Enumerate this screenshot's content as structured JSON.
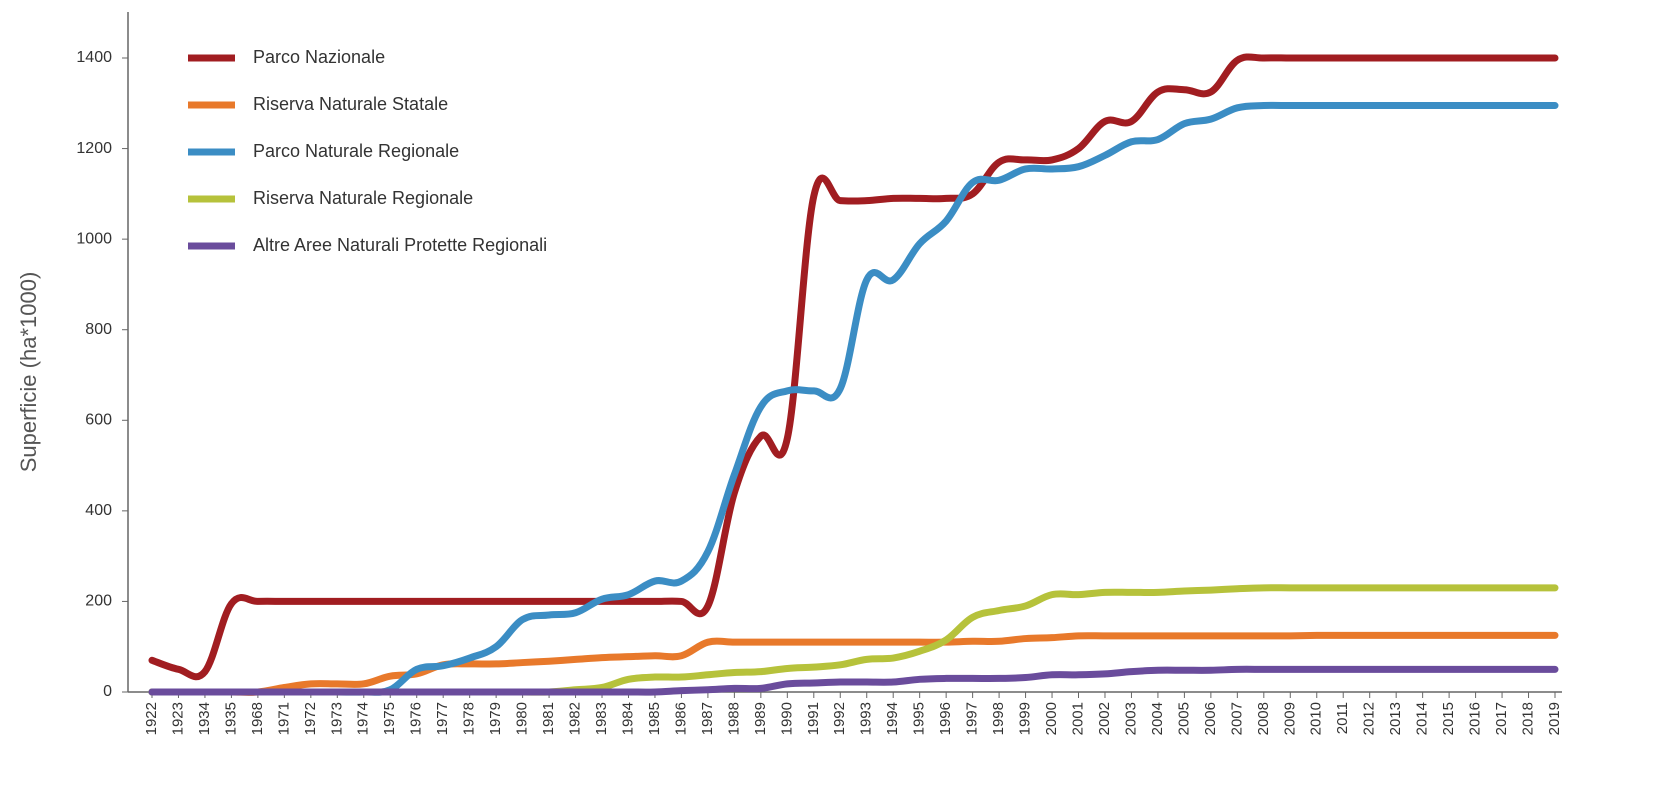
{
  "chart_data": {
    "type": "line",
    "y_label": "Superficie (ha*1000)",
    "categories": [
      "1922",
      "1923",
      "1934",
      "1935",
      "1968",
      "1971",
      "1972",
      "1973",
      "1974",
      "1975",
      "1976",
      "1977",
      "1978",
      "1979",
      "1980",
      "1981",
      "1982",
      "1983",
      "1984",
      "1985",
      "1986",
      "1987",
      "1988",
      "1989",
      "1990",
      "1991",
      "1992",
      "1993",
      "1994",
      "1995",
      "1996",
      "1997",
      "1998",
      "1999",
      "2000",
      "2001",
      "2002",
      "2003",
      "2004",
      "2005",
      "2006",
      "2007",
      "2008",
      "2009",
      "2010",
      "2011",
      "2012",
      "2013",
      "2014",
      "2015",
      "2016",
      "2017",
      "2018",
      "2019"
    ],
    "series": [
      {
        "name": "Parco Nazionale",
        "color": "#a11d21",
        "values": [
          70,
          50,
          45,
          195,
          200,
          200,
          200,
          200,
          200,
          200,
          200,
          200,
          200,
          200,
          200,
          200,
          200,
          200,
          200,
          200,
          200,
          190,
          440,
          565,
          560,
          1095,
          1085,
          1085,
          1090,
          1090,
          1090,
          1100,
          1170,
          1175,
          1175,
          1200,
          1260,
          1260,
          1325,
          1330,
          1325,
          1395,
          1400,
          1400,
          1400,
          1400,
          1400,
          1400,
          1400,
          1400,
          1400,
          1400,
          1400,
          1400
        ]
      },
      {
        "name": "Riserva Naturale Statale",
        "color": "#e8792b",
        "values": [
          0,
          0,
          0,
          0,
          0,
          10,
          18,
          18,
          18,
          35,
          40,
          60,
          62,
          62,
          65,
          68,
          72,
          76,
          78,
          80,
          80,
          110,
          110,
          110,
          110,
          110,
          110,
          110,
          110,
          110,
          110,
          112,
          112,
          118,
          120,
          124,
          124,
          124,
          124,
          124,
          124,
          124,
          124,
          124,
          125,
          125,
          125,
          125,
          125,
          125,
          125,
          125,
          125,
          125
        ]
      },
      {
        "name": "Parco Naturale Regionale",
        "color": "#3b8dc4",
        "values": [
          0,
          0,
          0,
          0,
          0,
          0,
          0,
          0,
          0,
          5,
          50,
          58,
          75,
          100,
          160,
          170,
          175,
          205,
          215,
          245,
          245,
          310,
          480,
          630,
          665,
          665,
          670,
          910,
          910,
          990,
          1040,
          1125,
          1130,
          1155,
          1155,
          1160,
          1185,
          1215,
          1220,
          1255,
          1265,
          1290,
          1295,
          1295,
          1295,
          1295,
          1295,
          1295,
          1295,
          1295,
          1295,
          1295,
          1295,
          1295
        ]
      },
      {
        "name": "Riserva Naturale Regionale",
        "color": "#b6c23b",
        "values": [
          0,
          0,
          0,
          0,
          0,
          0,
          0,
          0,
          0,
          0,
          0,
          0,
          0,
          0,
          0,
          0,
          5,
          10,
          28,
          33,
          33,
          38,
          43,
          45,
          52,
          55,
          60,
          72,
          75,
          90,
          115,
          165,
          180,
          190,
          215,
          215,
          220,
          220,
          220,
          223,
          225,
          228,
          230,
          230,
          230,
          230,
          230,
          230,
          230,
          230,
          230,
          230,
          230,
          230
        ]
      },
      {
        "name": "Altre Aree Naturali Protette Regionali",
        "color": "#6a4c9c",
        "values": [
          0,
          0,
          0,
          0,
          0,
          0,
          0,
          0,
          0,
          0,
          0,
          0,
          0,
          0,
          0,
          0,
          0,
          0,
          0,
          0,
          3,
          5,
          8,
          8,
          18,
          20,
          22,
          22,
          22,
          28,
          30,
          30,
          30,
          32,
          38,
          38,
          40,
          45,
          48,
          48,
          48,
          50,
          50,
          50,
          50,
          50,
          50,
          50,
          50,
          50,
          50,
          50,
          50,
          50
        ]
      }
    ],
    "ylim": [
      0,
      1400
    ],
    "yticks": [
      0,
      200,
      400,
      600,
      800,
      1000,
      1200,
      1400
    ],
    "yticks_labels_note_free": null,
    "legend": "upper-left"
  }
}
